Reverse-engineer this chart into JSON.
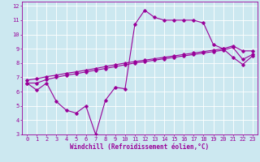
{
  "bg_color": "#cce8f0",
  "grid_color": "#ffffff",
  "line_color": "#990099",
  "marker": "D",
  "markersize": 1.8,
  "linewidth": 0.8,
  "xlabel": "Windchill (Refroidissement éolien,°C)",
  "xlabel_fontsize": 5.5,
  "tick_fontsize": 5.0,
  "xlim": [
    -0.5,
    23.5
  ],
  "ylim": [
    3,
    12.3
  ],
  "xticks": [
    0,
    1,
    2,
    3,
    4,
    5,
    6,
    7,
    8,
    9,
    10,
    11,
    12,
    13,
    14,
    15,
    16,
    17,
    18,
    19,
    20,
    21,
    22,
    23
  ],
  "yticks": [
    3,
    4,
    5,
    6,
    7,
    8,
    9,
    10,
    11,
    12
  ],
  "line1_x": [
    0,
    1,
    2,
    3,
    4,
    5,
    6,
    7,
    8,
    9,
    10,
    11,
    12,
    13,
    14,
    15,
    16,
    17,
    18,
    19,
    20,
    21,
    22,
    23
  ],
  "line1_y": [
    6.6,
    6.1,
    6.6,
    5.3,
    4.7,
    4.5,
    5.0,
    3.0,
    5.4,
    6.3,
    6.2,
    10.7,
    11.7,
    11.2,
    11.0,
    11.0,
    11.0,
    11.0,
    10.8,
    9.3,
    9.0,
    8.4,
    7.9,
    8.5
  ],
  "line2_x": [
    0,
    1,
    2,
    3,
    4,
    5,
    6,
    7,
    8,
    9,
    10,
    11,
    12,
    13,
    14,
    15,
    16,
    17,
    18,
    19,
    20,
    21,
    22,
    23
  ],
  "line2_y": [
    6.6,
    6.6,
    6.85,
    7.0,
    7.15,
    7.25,
    7.38,
    7.5,
    7.62,
    7.75,
    7.88,
    8.0,
    8.1,
    8.2,
    8.3,
    8.4,
    8.5,
    8.6,
    8.7,
    8.8,
    8.9,
    9.1,
    8.25,
    8.6
  ],
  "line3_x": [
    0,
    1,
    2,
    3,
    4,
    5,
    6,
    7,
    8,
    9,
    10,
    11,
    12,
    13,
    14,
    15,
    16,
    17,
    18,
    19,
    20,
    21,
    22,
    23
  ],
  "line3_y": [
    6.8,
    6.9,
    7.05,
    7.15,
    7.28,
    7.38,
    7.5,
    7.62,
    7.75,
    7.88,
    8.0,
    8.1,
    8.2,
    8.3,
    8.4,
    8.5,
    8.6,
    8.7,
    8.8,
    8.9,
    9.0,
    9.2,
    8.85,
    8.85
  ]
}
